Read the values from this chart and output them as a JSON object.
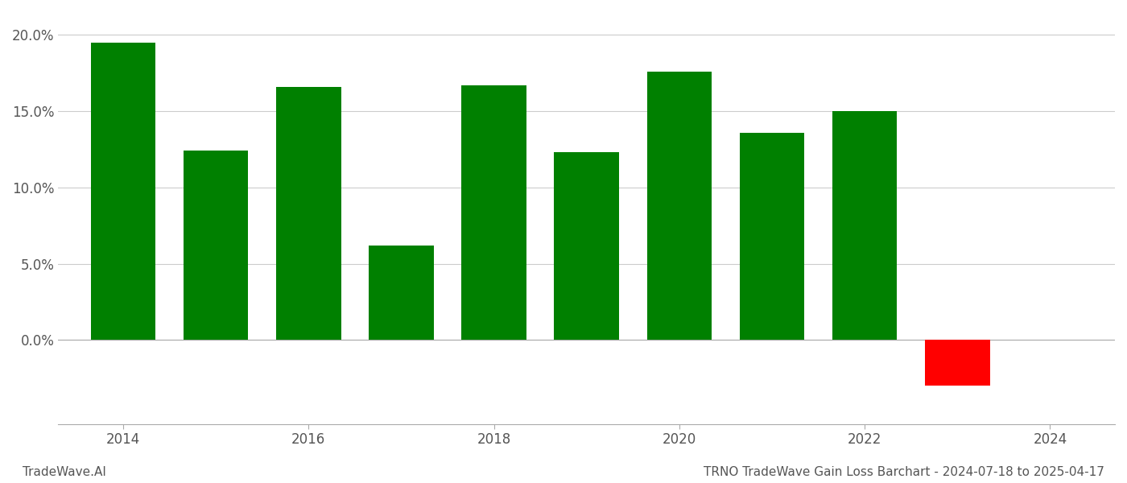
{
  "years": [
    2014,
    2015,
    2016,
    2017,
    2018,
    2019,
    2020,
    2021,
    2022,
    2023
  ],
  "values": [
    0.195,
    0.124,
    0.166,
    0.062,
    0.167,
    0.123,
    0.176,
    0.136,
    0.15,
    -0.03
  ],
  "bar_colors": [
    "#008000",
    "#008000",
    "#008000",
    "#008000",
    "#008000",
    "#008000",
    "#008000",
    "#008000",
    "#008000",
    "#ff0000"
  ],
  "title": "TRNO TradeWave Gain Loss Barchart - 2024-07-18 to 2025-04-17",
  "watermark": "TradeWave.AI",
  "ylim": [
    -0.055,
    0.215
  ],
  "yticks": [
    0.0,
    0.05,
    0.1,
    0.15,
    0.2
  ],
  "ytick_labels": [
    "0.0%",
    "5.0%",
    "10.0%",
    "15.0%",
    "20.0%"
  ],
  "xticks": [
    2014,
    2016,
    2018,
    2020,
    2022,
    2024
  ],
  "xlim": [
    2013.3,
    2024.7
  ],
  "grid_color": "#cccccc",
  "background_color": "#ffffff",
  "bar_width": 0.7,
  "title_fontsize": 11,
  "tick_fontsize": 12,
  "watermark_fontsize": 11
}
